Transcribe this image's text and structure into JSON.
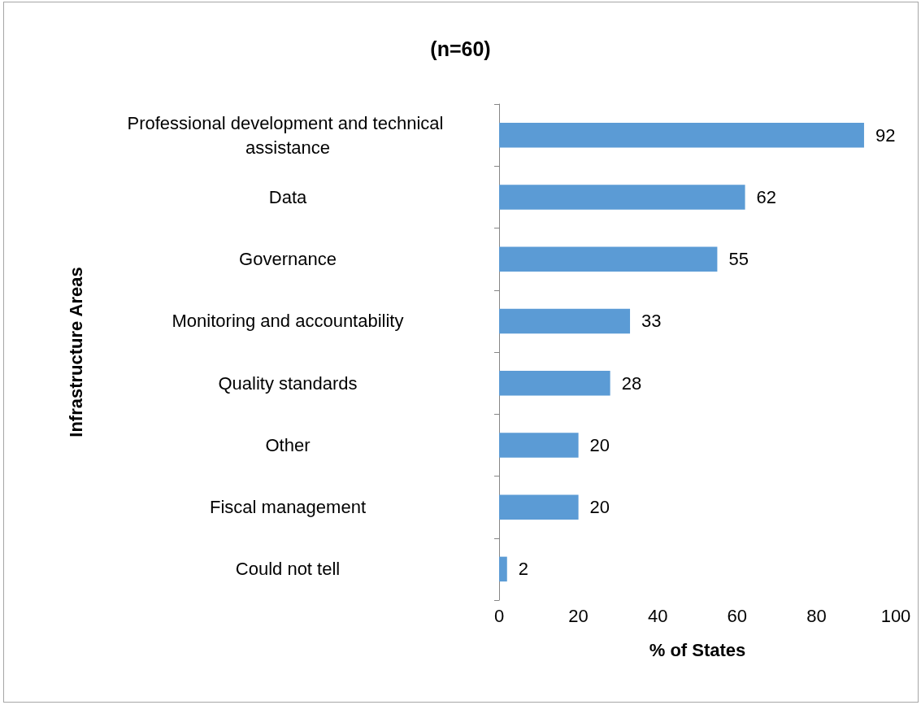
{
  "chart_data": {
    "type": "bar",
    "orientation": "horizontal",
    "title": "(n=60)",
    "xlabel": "% of States",
    "ylabel": "Infrastructure Areas",
    "categories": [
      "Professional development and technical assistance",
      "Data",
      "Governance",
      "Monitoring and accountability",
      "Quality standards",
      "Other",
      "Fiscal management",
      "Could not tell"
    ],
    "values": [
      92,
      62,
      55,
      33,
      28,
      20,
      20,
      2
    ],
    "color": "#5b9bd5",
    "xlim": [
      0,
      100
    ],
    "xticks": [
      0,
      20,
      40,
      60,
      80,
      100
    ],
    "data_labels": true
  }
}
